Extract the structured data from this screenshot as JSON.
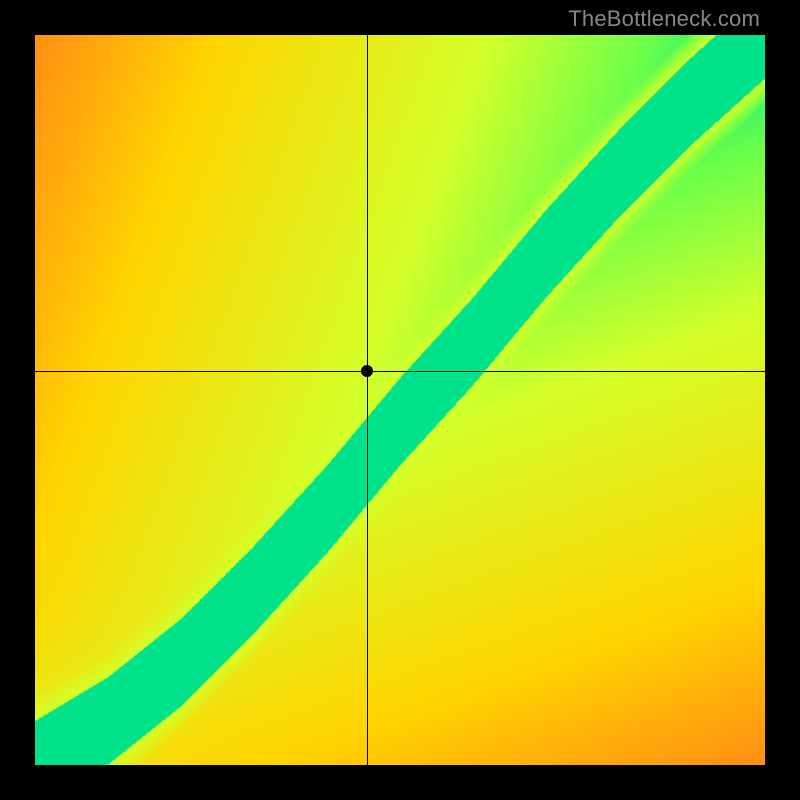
{
  "watermark": {
    "text": "TheBottleneck.com",
    "color": "#888888",
    "fontsize": 22,
    "font_family": "Arial"
  },
  "layout": {
    "canvas_size": 800,
    "plot_inset": 35,
    "plot_size": 730,
    "background_color": "#000000"
  },
  "heatmap": {
    "type": "gradient-field",
    "description": "Bottleneck heatmap: diagonal green band = balanced, off-diagonal = bottleneck",
    "axes": {
      "x_meaning": "component A performance (low→high)",
      "y_meaning": "component B performance (low→high)",
      "xlim": [
        0,
        1
      ],
      "ylim": [
        0,
        1
      ]
    },
    "color_stops": [
      {
        "t": 0.0,
        "hex": "#ff1e3c"
      },
      {
        "t": 0.25,
        "hex": "#ff6a1e"
      },
      {
        "t": 0.5,
        "hex": "#ffd400"
      },
      {
        "t": 0.75,
        "hex": "#d4ff2a"
      },
      {
        "t": 0.9,
        "hex": "#6aff4a"
      },
      {
        "t": 1.0,
        "hex": "#00e38a"
      }
    ],
    "diagonal_band": {
      "center_curve": [
        [
          0.0,
          0.0
        ],
        [
          0.1,
          0.06
        ],
        [
          0.2,
          0.14
        ],
        [
          0.3,
          0.24
        ],
        [
          0.4,
          0.35
        ],
        [
          0.5,
          0.47
        ],
        [
          0.6,
          0.58
        ],
        [
          0.7,
          0.7
        ],
        [
          0.8,
          0.81
        ],
        [
          0.9,
          0.91
        ],
        [
          1.0,
          1.0
        ]
      ],
      "half_width_normalized": 0.06,
      "yellow_halo_width_normalized": 0.035
    },
    "corner_bias": {
      "top_left": "red",
      "bottom_right": "red",
      "top_right": "green",
      "bottom_left": "green-origin"
    }
  },
  "crosshair": {
    "x_normalized": 0.455,
    "y_normalized": 0.54,
    "line_color": "#000000",
    "line_width": 1,
    "point_radius": 6,
    "point_color": "#000000"
  }
}
